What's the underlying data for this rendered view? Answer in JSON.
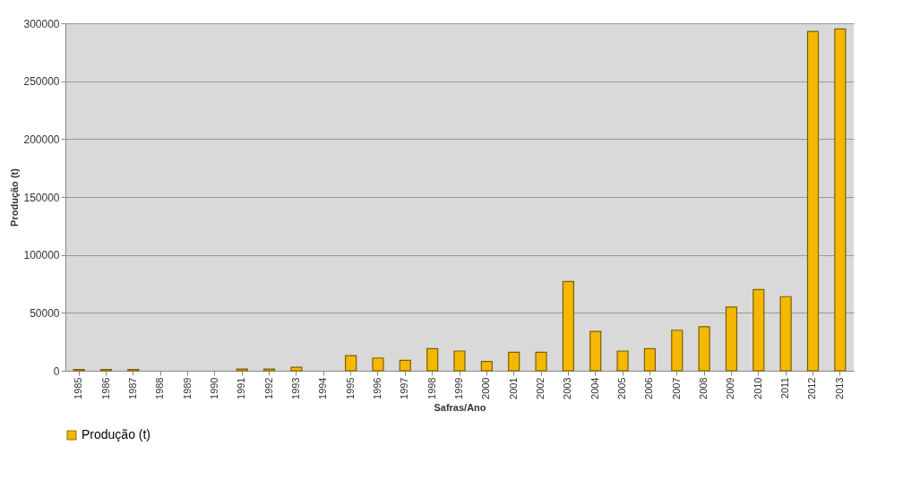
{
  "chart_data": {
    "type": "bar",
    "xlabel": "Safras/Ano",
    "ylabel": "Produção (t)",
    "categories": [
      "1985",
      "1986",
      "1987",
      "1988",
      "1989",
      "1990",
      "1991",
      "1992",
      "1993",
      "1994",
      "1995",
      "1996",
      "1997",
      "1998",
      "1999",
      "2000",
      "2001",
      "2002",
      "2003",
      "2004",
      "2005",
      "2006",
      "2007",
      "2008",
      "2009",
      "2010",
      "2011",
      "2012",
      "2013"
    ],
    "series": [
      {
        "name": "Produção (t)",
        "color": "#f5b800",
        "values": [
          1000,
          1000,
          1000,
          null,
          null,
          null,
          1500,
          1500,
          3000,
          null,
          13000,
          11000,
          9000,
          19000,
          17000,
          8000,
          16000,
          16000,
          77000,
          34000,
          17000,
          19000,
          35000,
          38000,
          55000,
          70000,
          64000,
          293000,
          295000
        ]
      }
    ],
    "ylim": [
      0,
      300000
    ],
    "yticks": [
      0,
      50000,
      100000,
      150000,
      200000,
      250000,
      300000
    ],
    "grid": "y",
    "legend": "bottom"
  }
}
